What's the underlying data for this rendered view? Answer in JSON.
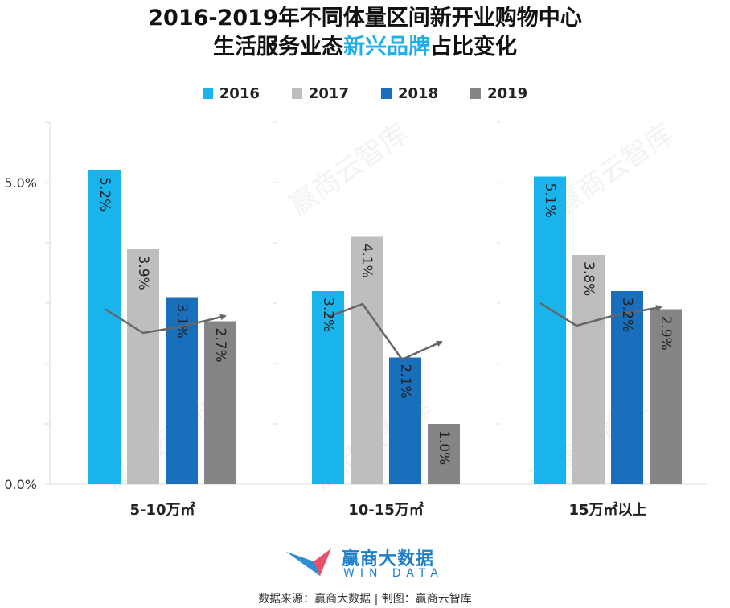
{
  "title": {
    "line1": "2016-2019年不同体量区间新开业购物中心",
    "line2_pre": "生活服务业态",
    "line2_highlight": "新兴品牌",
    "line2_post": "占比变化"
  },
  "colors": {
    "2016": "#1ab4ec",
    "2017": "#bfbdbd",
    "2018": "#1a6fbd",
    "2019": "#858585",
    "highlight": "#1bb0e8",
    "trend": "#666666"
  },
  "chart_data": {
    "type": "bar",
    "categories": [
      "5-10万㎡",
      "10-15万㎡",
      "15万㎡以上"
    ],
    "series": [
      {
        "name": "2016",
        "values": [
          5.2,
          3.2,
          5.1
        ],
        "labels": [
          "5.2%",
          "3.2%",
          "5.1%"
        ]
      },
      {
        "name": "2017",
        "values": [
          3.9,
          4.1,
          3.8
        ],
        "labels": [
          "3.9%",
          "4.1%",
          "3.8%"
        ]
      },
      {
        "name": "2018",
        "values": [
          3.1,
          2.1,
          3.2
        ],
        "labels": [
          "3.1%",
          "2.1%",
          "3.2%"
        ]
      },
      {
        "name": "2019",
        "values": [
          2.7,
          1.0,
          2.9
        ],
        "labels": [
          "2.7%",
          "1.0%",
          "2.9%"
        ]
      }
    ],
    "yticks": [
      "0.0%",
      "5.0%"
    ],
    "ylim": [
      0,
      6
    ],
    "legend": "top",
    "grid": false,
    "trend_lines": true
  },
  "watermark": "赢商云智库",
  "footer": {
    "brand_cn": "赢商大数据",
    "brand_en": "WIN DATA",
    "source": "数据来源：赢商大数据 | 制图：赢商云智库"
  }
}
